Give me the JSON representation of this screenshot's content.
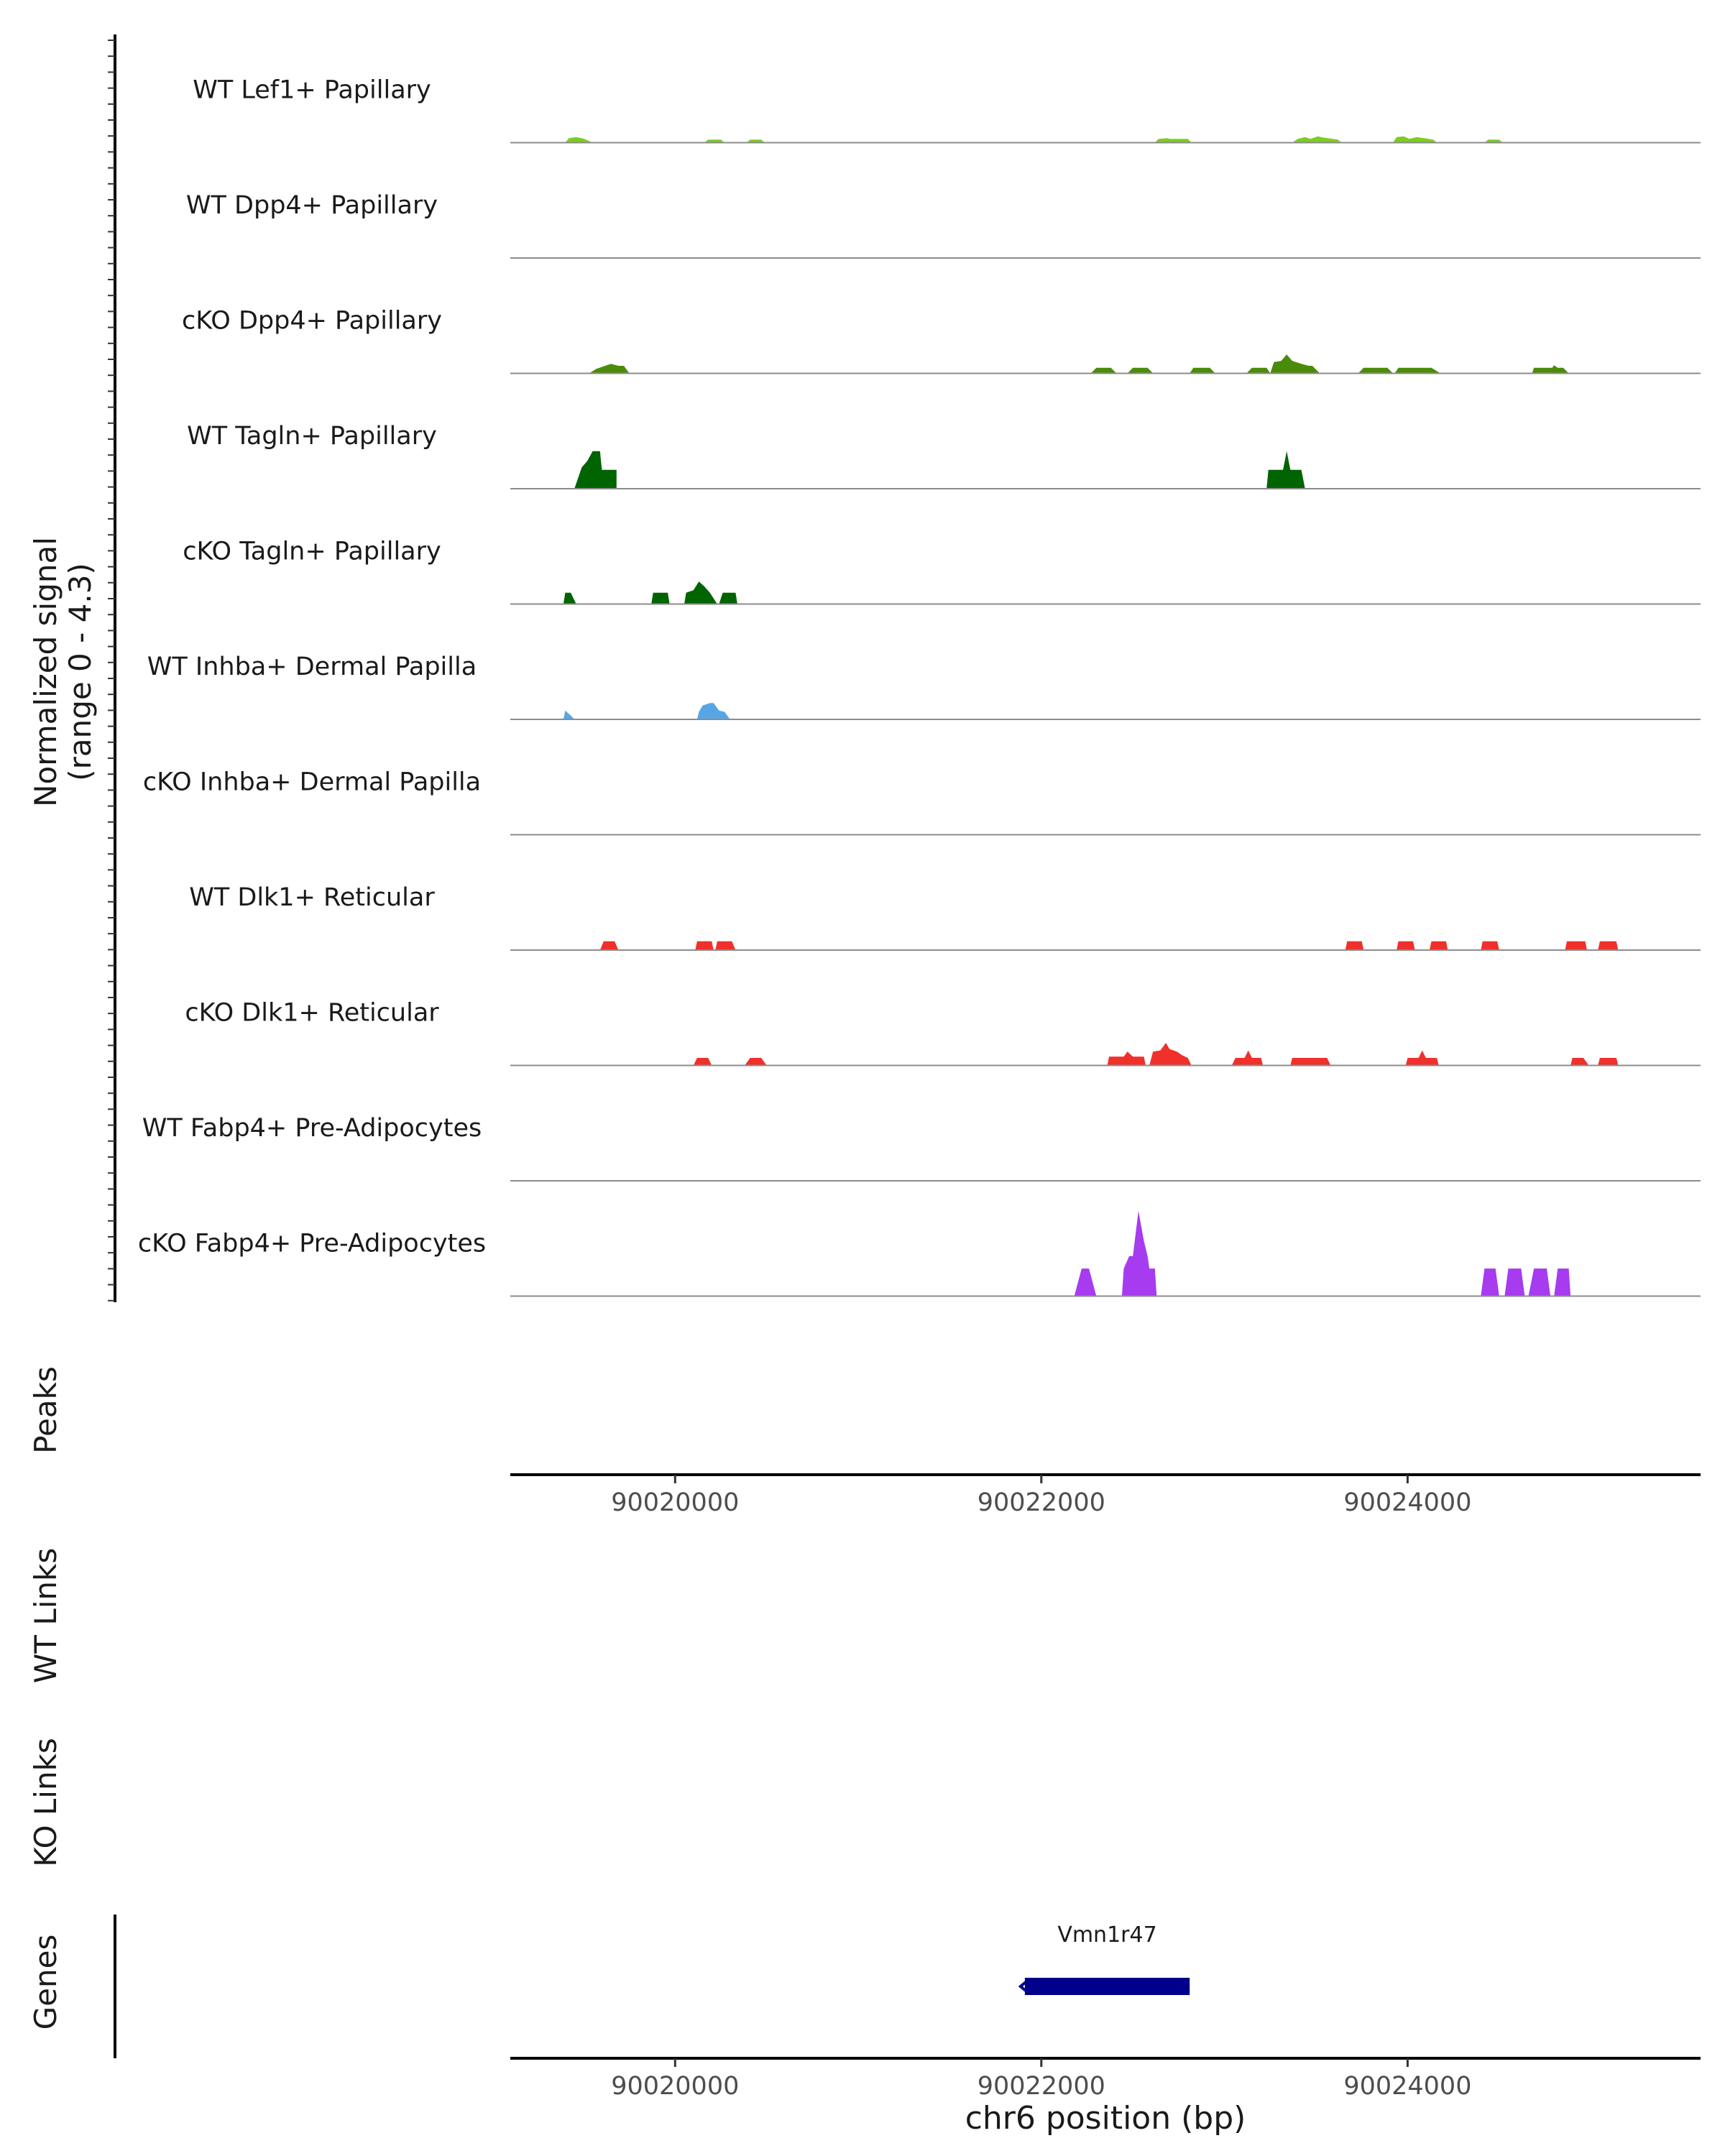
{
  "chart_data": {
    "type": "area",
    "title": "",
    "chromosome": "chr6",
    "xlim": [
      90019100,
      90025600
    ],
    "xlabel": "chr6 position (bp)",
    "x_ticks": [
      90020000,
      90022000,
      90024000
    ],
    "x_tick_labels": [
      "90020000",
      "90022000",
      "90024000"
    ],
    "ylabel": [
      "Normalized signal",
      "(range 0 - 4.3)"
    ],
    "ylim": [
      0,
      4.3
    ],
    "tracks": [
      {
        "name": "WT Lef1+ Papillary",
        "color": "#7CCD1F",
        "points": [
          [
            90019400,
            0
          ],
          [
            90019420,
            0.18
          ],
          [
            90019460,
            0.22
          ],
          [
            90019500,
            0.16
          ],
          [
            90019550,
            0
          ],
          [
            90020160,
            0
          ],
          [
            90020180,
            0.12
          ],
          [
            90020250,
            0.12
          ],
          [
            90020270,
            0
          ],
          [
            90020390,
            0
          ],
          [
            90020410,
            0.12
          ],
          [
            90020470,
            0.12
          ],
          [
            90020490,
            0
          ],
          [
            90022620,
            0
          ],
          [
            90022640,
            0.15
          ],
          [
            90022690,
            0.18
          ],
          [
            90022700,
            0.15
          ],
          [
            90022800,
            0.15
          ],
          [
            90022820,
            0
          ],
          [
            90023370,
            0
          ],
          [
            90023400,
            0.15
          ],
          [
            90023440,
            0.22
          ],
          [
            90023470,
            0.15
          ],
          [
            90023510,
            0.25
          ],
          [
            90023540,
            0.2
          ],
          [
            90023620,
            0.12
          ],
          [
            90023640,
            0
          ],
          [
            90023920,
            0
          ],
          [
            90023940,
            0.22
          ],
          [
            90023980,
            0.25
          ],
          [
            90024010,
            0.15
          ],
          [
            90024050,
            0.22
          ],
          [
            90024090,
            0.18
          ],
          [
            90024140,
            0.12
          ],
          [
            90024160,
            0
          ],
          [
            90024420,
            0
          ],
          [
            90024440,
            0.12
          ],
          [
            90024500,
            0.12
          ],
          [
            90024520,
            0
          ]
        ]
      },
      {
        "name": "WT Dpp4+ Papillary",
        "color": "#7CCD1F",
        "points": []
      },
      {
        "name": "cKO Dpp4+ Papillary",
        "color": "#4A8C0A",
        "points": [
          [
            90019530,
            0
          ],
          [
            90019570,
            0.18
          ],
          [
            90019610,
            0.28
          ],
          [
            90019650,
            0.38
          ],
          [
            90019690,
            0.3
          ],
          [
            90019720,
            0.3
          ],
          [
            90019750,
            0
          ],
          [
            90022270,
            0
          ],
          [
            90022300,
            0.22
          ],
          [
            90022380,
            0.22
          ],
          [
            90022410,
            0
          ],
          [
            90022470,
            0
          ],
          [
            90022500,
            0.22
          ],
          [
            90022580,
            0.22
          ],
          [
            90022610,
            0
          ],
          [
            90022810,
            0
          ],
          [
            90022830,
            0.22
          ],
          [
            90022920,
            0.22
          ],
          [
            90022950,
            0
          ],
          [
            90023120,
            0
          ],
          [
            90023150,
            0.22
          ],
          [
            90023230,
            0.22
          ],
          [
            90023250,
            0
          ],
          [
            90023250,
            0
          ],
          [
            90023270,
            0.45
          ],
          [
            90023310,
            0.5
          ],
          [
            90023340,
            0.75
          ],
          [
            90023370,
            0.5
          ],
          [
            90023420,
            0.38
          ],
          [
            90023460,
            0.3
          ],
          [
            90023480,
            0.3
          ],
          [
            90023520,
            0
          ],
          [
            90023730,
            0
          ],
          [
            90023760,
            0.22
          ],
          [
            90023890,
            0.22
          ],
          [
            90023920,
            0
          ],
          [
            90023930,
            0
          ],
          [
            90023950,
            0.22
          ],
          [
            90024130,
            0.22
          ],
          [
            90024180,
            0
          ],
          [
            90024680,
            0
          ],
          [
            90024690,
            0.22
          ],
          [
            90024790,
            0.22
          ],
          [
            90024800,
            0.32
          ],
          [
            90024820,
            0.22
          ],
          [
            90024850,
            0.22
          ],
          [
            90024880,
            0
          ]
        ]
      },
      {
        "name": "WT Tagln+ Papillary",
        "color": "#006400",
        "points": [
          [
            90019450,
            0
          ],
          [
            90019490,
            0.85
          ],
          [
            90019520,
            1.1
          ],
          [
            90019550,
            1.5
          ],
          [
            90019590,
            1.5
          ],
          [
            90019600,
            0.75
          ],
          [
            90019680,
            0.75
          ],
          [
            90019680,
            0
          ],
          [
            90023230,
            0
          ],
          [
            90023240,
            0.75
          ],
          [
            90023320,
            0.75
          ],
          [
            90023340,
            1.5
          ],
          [
            90023360,
            0.75
          ],
          [
            90023420,
            0.75
          ],
          [
            90023440,
            0
          ]
        ]
      },
      {
        "name": "cKO Tagln+ Papillary",
        "color": "#006400",
        "points": [
          [
            90019390,
            0
          ],
          [
            90019400,
            0.45
          ],
          [
            90019430,
            0.45
          ],
          [
            90019460,
            0
          ],
          [
            90019870,
            0
          ],
          [
            90019880,
            0.45
          ],
          [
            90019960,
            0.45
          ],
          [
            90019970,
            0
          ],
          [
            90020050,
            0
          ],
          [
            90020060,
            0.45
          ],
          [
            90020100,
            0.55
          ],
          [
            90020130,
            0.9
          ],
          [
            90020160,
            0.7
          ],
          [
            90020190,
            0.45
          ],
          [
            90020230,
            0
          ],
          [
            90020240,
            0
          ],
          [
            90020260,
            0.45
          ],
          [
            90020330,
            0.45
          ],
          [
            90020340,
            0
          ]
        ]
      },
      {
        "name": "WT Inhba+ Dermal Papilla",
        "color": "#56A6E6",
        "points": [
          [
            90019390,
            0
          ],
          [
            90019400,
            0.35
          ],
          [
            90019430,
            0.15
          ],
          [
            90019450,
            0
          ],
          [
            90020120,
            0
          ],
          [
            90020130,
            0.3
          ],
          [
            90020150,
            0.55
          ],
          [
            90020190,
            0.65
          ],
          [
            90020210,
            0.65
          ],
          [
            90020240,
            0.35
          ],
          [
            90020270,
            0.3
          ],
          [
            90020300,
            0
          ]
        ]
      },
      {
        "name": "cKO Inhba+ Dermal Papilla",
        "color": "#56A6E6",
        "points": []
      },
      {
        "name": "WT Dlk1+ Reticular",
        "color": "#F0302B",
        "points": [
          [
            90019590,
            0
          ],
          [
            90019610,
            0.35
          ],
          [
            90019670,
            0.35
          ],
          [
            90019690,
            0
          ],
          [
            90020110,
            0
          ],
          [
            90020120,
            0.35
          ],
          [
            90020200,
            0.35
          ],
          [
            90020210,
            0
          ],
          [
            90020220,
            0
          ],
          [
            90020230,
            0.35
          ],
          [
            90020310,
            0.35
          ],
          [
            90020330,
            0
          ],
          [
            90023660,
            0
          ],
          [
            90023670,
            0.35
          ],
          [
            90023750,
            0.35
          ],
          [
            90023760,
            0
          ],
          [
            90023940,
            0
          ],
          [
            90023950,
            0.35
          ],
          [
            90024030,
            0.35
          ],
          [
            90024040,
            0
          ],
          [
            90024120,
            0
          ],
          [
            90024130,
            0.35
          ],
          [
            90024210,
            0.35
          ],
          [
            90024220,
            0
          ],
          [
            90024400,
            0
          ],
          [
            90024410,
            0.35
          ],
          [
            90024490,
            0.35
          ],
          [
            90024500,
            0
          ],
          [
            90024860,
            0
          ],
          [
            90024870,
            0.35
          ],
          [
            90024970,
            0.35
          ],
          [
            90024980,
            0
          ],
          [
            90025040,
            0
          ],
          [
            90025050,
            0.35
          ],
          [
            90025140,
            0.35
          ],
          [
            90025150,
            0
          ]
        ]
      },
      {
        "name": "cKO Dlk1+ Reticular",
        "color": "#F0302B",
        "points": [
          [
            90020100,
            0
          ],
          [
            90020120,
            0.3
          ],
          [
            90020180,
            0.3
          ],
          [
            90020200,
            0
          ],
          [
            90020380,
            0
          ],
          [
            90020410,
            0.3
          ],
          [
            90020470,
            0.3
          ],
          [
            90020500,
            0
          ],
          [
            90022360,
            0
          ],
          [
            90022370,
            0.35
          ],
          [
            90022450,
            0.35
          ],
          [
            90022470,
            0.55
          ],
          [
            90022500,
            0.35
          ],
          [
            90022560,
            0.35
          ],
          [
            90022570,
            0
          ],
          [
            90022590,
            0
          ],
          [
            90022610,
            0.55
          ],
          [
            90022650,
            0.6
          ],
          [
            90022680,
            0.9
          ],
          [
            90022700,
            0.65
          ],
          [
            90022740,
            0.55
          ],
          [
            90022770,
            0.4
          ],
          [
            90022800,
            0.3
          ],
          [
            90022820,
            0
          ],
          [
            90023040,
            0
          ],
          [
            90023060,
            0.3
          ],
          [
            90023110,
            0.3
          ],
          [
            90023130,
            0.6
          ],
          [
            90023150,
            0.3
          ],
          [
            90023200,
            0.3
          ],
          [
            90023210,
            0
          ],
          [
            90023360,
            0
          ],
          [
            90023370,
            0.3
          ],
          [
            90023560,
            0.3
          ],
          [
            90023580,
            0
          ],
          [
            90023990,
            0
          ],
          [
            90024000,
            0.3
          ],
          [
            90024060,
            0.3
          ],
          [
            90024080,
            0.6
          ],
          [
            90024100,
            0.3
          ],
          [
            90024160,
            0.3
          ],
          [
            90024170,
            0
          ],
          [
            90024890,
            0
          ],
          [
            90024900,
            0.3
          ],
          [
            90024960,
            0.3
          ],
          [
            90024990,
            0
          ],
          [
            90025040,
            0
          ],
          [
            90025050,
            0.3
          ],
          [
            90025140,
            0.3
          ],
          [
            90025150,
            0
          ]
        ]
      },
      {
        "name": "WT Fabp4+ Pre-Adipocytes",
        "color": "#A63BF0",
        "points": []
      },
      {
        "name": "cKO Fabp4+ Pre-Adipocytes",
        "color": "#A63BF0",
        "points": [
          [
            90022180,
            0
          ],
          [
            90022220,
            1.1
          ],
          [
            90022260,
            1.1
          ],
          [
            90022300,
            0
          ],
          [
            90022440,
            0
          ],
          [
            90022450,
            1.1
          ],
          [
            90022480,
            1.6
          ],
          [
            90022500,
            1.6
          ],
          [
            90022530,
            3.4
          ],
          [
            90022560,
            2.2
          ],
          [
            90022580,
            1.6
          ],
          [
            90022590,
            1.1
          ],
          [
            90022620,
            1.1
          ],
          [
            90022630,
            0
          ],
          [
            90024400,
            0
          ],
          [
            90024420,
            1.1
          ],
          [
            90024480,
            1.1
          ],
          [
            90024500,
            0
          ],
          [
            90024530,
            0
          ],
          [
            90024550,
            1.1
          ],
          [
            90024620,
            1.1
          ],
          [
            90024640,
            0
          ],
          [
            90024660,
            0
          ],
          [
            90024690,
            1.1
          ],
          [
            90024760,
            1.1
          ],
          [
            90024780,
            0
          ],
          [
            90024800,
            0
          ],
          [
            90024820,
            1.1
          ],
          [
            90024880,
            1.1
          ],
          [
            90024890,
            0
          ]
        ]
      }
    ],
    "peaks_label": "Peaks",
    "wt_links_label": "WT Links",
    "ko_links_label": "KO Links",
    "genes_label": "Genes",
    "genes": [
      {
        "name": "Vmn1r47",
        "start": 90021910,
        "end": 90022810,
        "strand": "-",
        "color": "#00008B"
      }
    ]
  }
}
